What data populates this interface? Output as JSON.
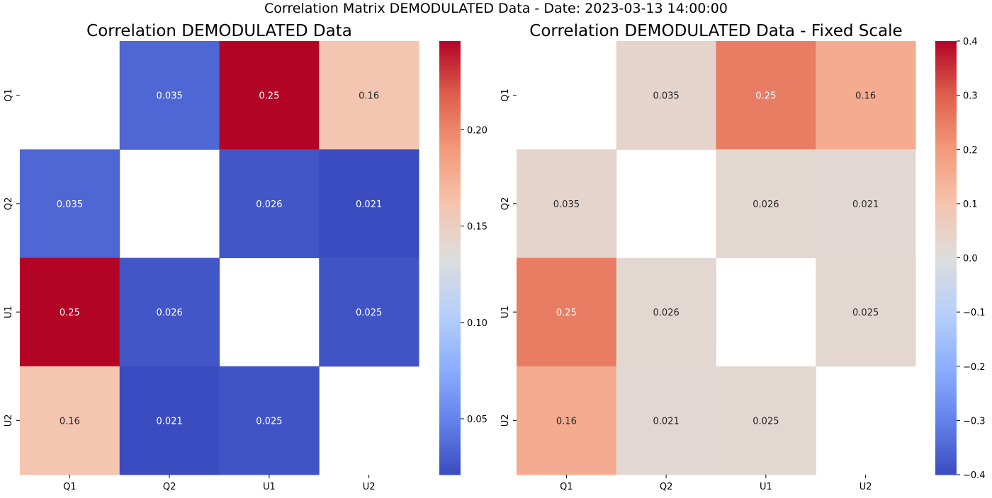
{
  "figure": {
    "suptitle": "Correlation Matrix DEMODULATED Data - Date: 2023-03-13 14:00:00"
  },
  "chart_data": [
    {
      "type": "heatmap",
      "title": "Correlation DEMODULATED Data",
      "colormap": "coolwarm",
      "x_labels": [
        "Q1",
        "Q2",
        "U1",
        "U2"
      ],
      "y_labels": [
        "Q1",
        "Q2",
        "U1",
        "U2"
      ],
      "values": [
        [
          null,
          0.035,
          0.25,
          0.16
        ],
        [
          0.035,
          null,
          0.026,
          0.021
        ],
        [
          0.25,
          0.026,
          null,
          0.025
        ],
        [
          0.16,
          0.021,
          0.025,
          null
        ]
      ],
      "annotations": [
        [
          "",
          "0.035",
          "0.25",
          "0.16"
        ],
        [
          "0.035",
          "",
          "0.026",
          "0.021"
        ],
        [
          "0.25",
          "0.026",
          "",
          "0.025"
        ],
        [
          "0.16",
          "0.021",
          "0.025",
          ""
        ]
      ],
      "vmin": 0.021,
      "vmax": 0.246,
      "colorbar_ticks": [
        0.05,
        0.1,
        0.15,
        0.2
      ],
      "colorbar_tick_labels": [
        "0.05",
        "0.10",
        "0.15",
        "0.20"
      ]
    },
    {
      "type": "heatmap",
      "title": "Correlation DEMODULATED Data - Fixed Scale",
      "colormap": "coolwarm",
      "x_labels": [
        "Q1",
        "Q2",
        "U1",
        "U2"
      ],
      "y_labels": [
        "Q1",
        "Q2",
        "U1",
        "U2"
      ],
      "values": [
        [
          null,
          0.035,
          0.25,
          0.16
        ],
        [
          0.035,
          null,
          0.026,
          0.021
        ],
        [
          0.25,
          0.026,
          null,
          0.025
        ],
        [
          0.16,
          0.021,
          0.025,
          null
        ]
      ],
      "annotations": [
        [
          "",
          "0.035",
          "0.25",
          "0.16"
        ],
        [
          "0.035",
          "",
          "0.026",
          "0.021"
        ],
        [
          "0.25",
          "0.026",
          "",
          "0.025"
        ],
        [
          "0.16",
          "0.021",
          "0.025",
          ""
        ]
      ],
      "vmin": -0.4,
      "vmax": 0.4,
      "colorbar_ticks": [
        -0.4,
        -0.3,
        -0.2,
        -0.1,
        0.0,
        0.1,
        0.2,
        0.3,
        0.4
      ],
      "colorbar_tick_labels": [
        "−0.4",
        "−0.3",
        "−0.2",
        "−0.1",
        "0.0",
        "0.1",
        "0.2",
        "0.3",
        "0.4"
      ]
    }
  ]
}
